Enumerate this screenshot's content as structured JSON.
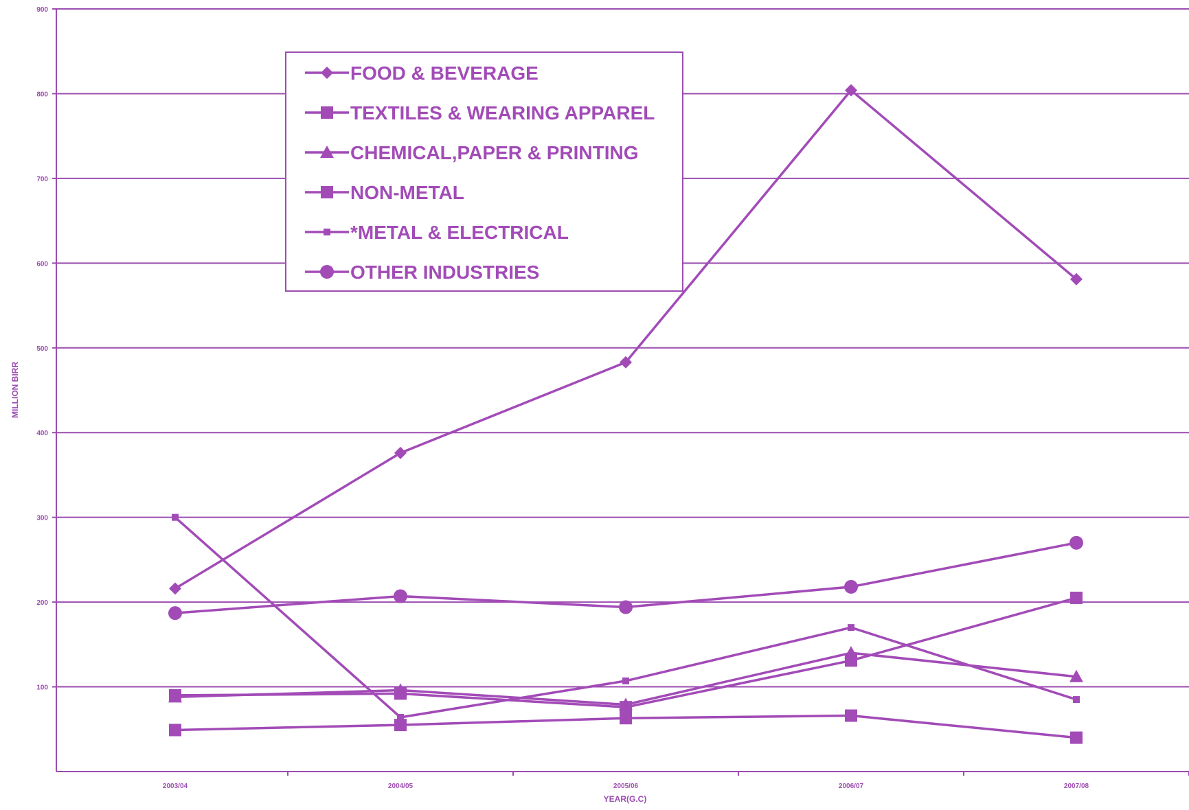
{
  "chart_data": {
    "type": "line",
    "title": "",
    "xlabel": "YEAR(G.C)",
    "ylabel": "MILLION BIRR",
    "categories": [
      "2003/04",
      "2004/05",
      "2005/06",
      "2006/07",
      "2007/08"
    ],
    "ylim": [
      0,
      900
    ],
    "yticks": [
      100,
      200,
      300,
      400,
      500,
      600,
      700,
      800,
      900
    ],
    "grid": "horizontal",
    "legend_position": "top-left-inside",
    "series": [
      {
        "name": "FOOD & BEVERAGE",
        "marker": "diamond",
        "values": [
          216,
          376,
          483,
          804,
          581
        ]
      },
      {
        "name": "TEXTILES & WEARING APPAREL",
        "marker": "square",
        "values": [
          90,
          92,
          76,
          131,
          205
        ]
      },
      {
        "name": "CHEMICAL,PAPER & PRINTING",
        "marker": "triangle",
        "values": [
          88,
          96,
          79,
          140,
          112
        ]
      },
      {
        "name": "NON-METAL",
        "marker": "square",
        "values": [
          49,
          55,
          63,
          66,
          40
        ]
      },
      {
        "name": "*METAL & ELECTRICAL",
        "marker": "small-square",
        "values": [
          300,
          64,
          107,
          170,
          85
        ]
      },
      {
        "name": "OTHER INDUSTRIES",
        "marker": "circle",
        "values": [
          187,
          207,
          194,
          218,
          270
        ]
      }
    ],
    "colors": {
      "line": "#a24bb7",
      "axis": "#9c4db0",
      "grid": "#9c4db0"
    }
  }
}
